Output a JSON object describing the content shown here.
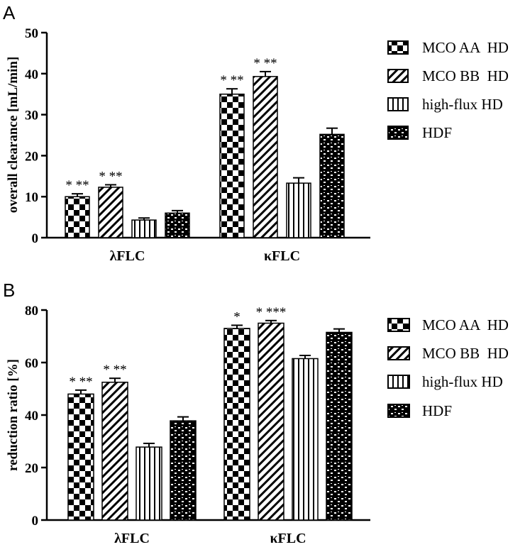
{
  "colors": {
    "ink": "#000000",
    "paper": "#ffffff"
  },
  "chart_data": [
    {
      "panel_label": "A",
      "type": "bar",
      "categories": [
        "λFLC",
        "κFLC"
      ],
      "series": [
        {
          "name": "MCO AA  HD",
          "pattern": "checker",
          "values": [
            10,
            35
          ],
          "errors": [
            0.7,
            1.3
          ],
          "annotations": [
            "* **",
            "* **"
          ]
        },
        {
          "name": "MCO BB  HD",
          "pattern": "diagonal",
          "values": [
            12.3,
            39.3
          ],
          "errors": [
            0.6,
            1.2
          ],
          "annotations": [
            "* **",
            "* **"
          ]
        },
        {
          "name": "high-flux HD",
          "pattern": "vertical",
          "values": [
            4.3,
            13.3
          ],
          "errors": [
            0.5,
            1.3
          ],
          "annotations": [
            "",
            ""
          ]
        },
        {
          "name": "HDF",
          "pattern": "brick",
          "values": [
            6.0,
            25.2
          ],
          "errors": [
            0.6,
            1.5
          ],
          "annotations": [
            "",
            ""
          ]
        }
      ],
      "xlabel": "",
      "ylabel": "overall clearance [mL/min]",
      "ylim": [
        0,
        50
      ],
      "yticks": [
        0,
        10,
        20,
        30,
        40,
        50
      ],
      "legend": "right"
    },
    {
      "panel_label": "B",
      "type": "bar",
      "categories": [
        "λFLC",
        "κFLC"
      ],
      "series": [
        {
          "name": "MCO AA  HD",
          "pattern": "checker",
          "values": [
            48,
            73
          ],
          "errors": [
            1.5,
            1.2
          ],
          "annotations": [
            "* **",
            "*"
          ]
        },
        {
          "name": "MCO BB  HD",
          "pattern": "diagonal",
          "values": [
            52.5,
            75
          ],
          "errors": [
            1.5,
            1.0
          ],
          "annotations": [
            "* **",
            "* ***"
          ]
        },
        {
          "name": "high-flux HD",
          "pattern": "vertical",
          "values": [
            27.8,
            61.5
          ],
          "errors": [
            1.4,
            1.2
          ],
          "annotations": [
            "",
            ""
          ]
        },
        {
          "name": "HDF",
          "pattern": "brick",
          "values": [
            37.8,
            71.5
          ],
          "errors": [
            1.5,
            1.3
          ],
          "annotations": [
            "",
            ""
          ]
        }
      ],
      "xlabel": "",
      "ylabel": "reduction ratio [%]",
      "ylim": [
        0,
        80
      ],
      "yticks": [
        0,
        20,
        40,
        60,
        80
      ],
      "legend": "right"
    }
  ]
}
